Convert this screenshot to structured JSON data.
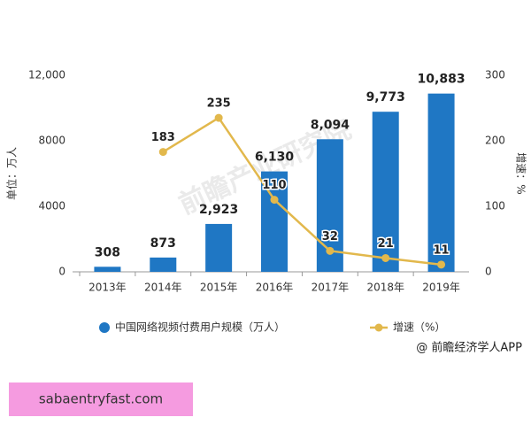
{
  "chart_data": {
    "type": "bar_line",
    "y_label": "单位：万人",
    "y2_label": "增速：%",
    "categories": [
      "2013年",
      "2014年",
      "2015年",
      "2016年",
      "2017年",
      "2018年",
      "2019年"
    ],
    "series": [
      {
        "name": "中国网络视频付费用户规模（万人）",
        "type": "bar",
        "color": "#1f77c4",
        "values": [
          308,
          873,
          2923,
          6130,
          8094,
          9773,
          10883
        ],
        "value_labels": [
          "308",
          "873",
          "2,923",
          "6,130",
          "8,094",
          "9,773",
          "10,883"
        ]
      },
      {
        "name": "增速（%）",
        "type": "line",
        "axis": "y2",
        "color": "#e2b84c",
        "values": [
          null,
          183,
          235,
          110,
          32,
          21,
          11
        ]
      }
    ],
    "ylim": [
      0,
      12000
    ],
    "yticks": [
      0,
      4000,
      8000,
      {
        "value": 12000,
        "label": "12,000"
      }
    ],
    "y2lim": [
      0,
      300
    ],
    "y2ticks": [
      0,
      100,
      200,
      300
    ],
    "watermark": "前瞻产业研究院",
    "source": "@ 前瞻经济学人APP",
    "banner": "sabaentryfast.com"
  }
}
